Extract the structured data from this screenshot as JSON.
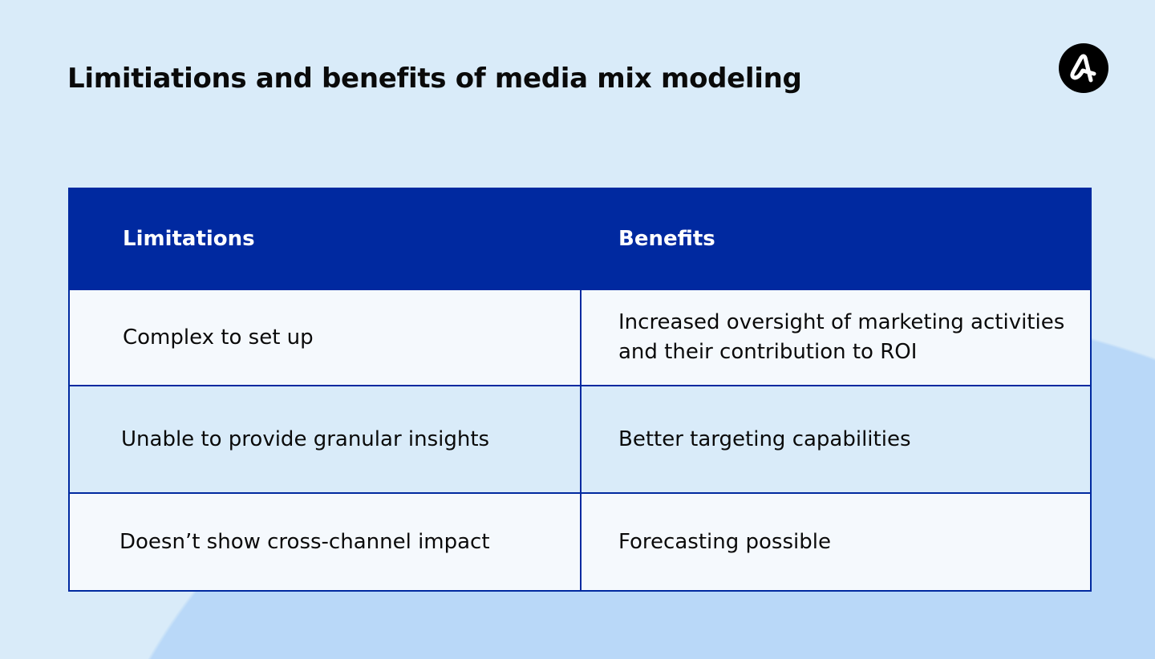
{
  "title": "Limitiations and benefits of media mix modeling",
  "logo": {
    "icon": "brand-a-logo",
    "color": "#000000"
  },
  "colors": {
    "header": "#0029a0",
    "background": "#d9ebf9",
    "accent_shape": "#b9d8f8"
  },
  "table": {
    "headers": [
      "Limitations",
      "Benefits"
    ],
    "rows": [
      [
        "Complex to set up",
        "Increased oversight of marketing activities and their contribution to ROI"
      ],
      [
        "Unable to provide granular insights",
        "Better targeting capabilities"
      ],
      [
        "Doesn’t show cross-channel impact",
        "Forecasting possible"
      ]
    ]
  }
}
